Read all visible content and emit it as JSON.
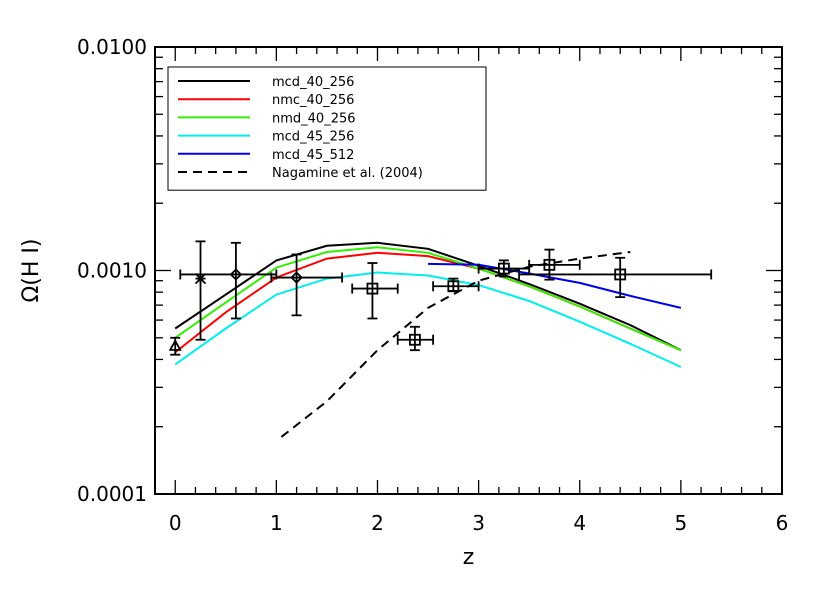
{
  "chart_data": {
    "type": "line",
    "title": "",
    "xlabel": "z",
    "ylabel": "Ω(H I)",
    "xlim": [
      -0.2,
      6
    ],
    "ylim": [
      0.0001,
      0.01
    ],
    "yscale": "log",
    "grid": false,
    "legend_position": "top-left",
    "x_ticks": [
      0,
      1,
      2,
      3,
      4,
      5,
      6
    ],
    "x_tick_labels": [
      "0",
      "1",
      "2",
      "3",
      "4",
      "5",
      "6"
    ],
    "y_ticks": [
      0.0001,
      0.001,
      0.01
    ],
    "y_tick_labels": [
      "0.0001",
      "0.0010",
      "0.0100"
    ],
    "series": [
      {
        "name": "mcd_40_256",
        "color": "#000000",
        "dash": "solid",
        "x": [
          0,
          0.5,
          1,
          1.5,
          2,
          2.5,
          3,
          3.5,
          4,
          4.5,
          5
        ],
        "y": [
          0.00055,
          0.00078,
          0.00111,
          0.00129,
          0.00133,
          0.00125,
          0.00105,
          0.00087,
          0.00071,
          0.00057,
          0.00044
        ]
      },
      {
        "name": "nmc_40_256",
        "color": "#ff0000",
        "dash": "solid",
        "x": [
          0,
          0.5,
          1,
          1.5,
          2,
          2.5,
          3,
          3.5,
          4,
          4.5,
          5
        ],
        "y": [
          0.00043,
          0.00065,
          0.00093,
          0.00113,
          0.0012,
          0.00116,
          0.00102,
          0.00085,
          0.00069,
          0.00055,
          0.00044
        ]
      },
      {
        "name": "nmd_40_256",
        "color": "#33ee00",
        "dash": "solid",
        "x": [
          0,
          0.5,
          1,
          1.5,
          2,
          2.5,
          3,
          3.5,
          4,
          4.5,
          5
        ],
        "y": [
          0.0005,
          0.00072,
          0.00103,
          0.00121,
          0.00127,
          0.0012,
          0.00102,
          0.00085,
          0.00069,
          0.00055,
          0.00044
        ]
      },
      {
        "name": "mcd_45_256",
        "color": "#00eeee",
        "dash": "solid",
        "x": [
          0,
          0.5,
          1,
          1.5,
          2,
          2.5,
          3,
          3.5,
          4,
          4.5,
          5
        ],
        "y": [
          0.00038,
          0.00055,
          0.00078,
          0.00092,
          0.00098,
          0.00095,
          0.00086,
          0.00073,
          0.00059,
          0.00047,
          0.00037
        ]
      },
      {
        "name": "mcd_45_512",
        "color": "#0000ee",
        "dash": "solid",
        "x": [
          2.5,
          3,
          3.5,
          4,
          4.5,
          5
        ],
        "y": [
          0.00107,
          0.00106,
          0.00097,
          0.00088,
          0.00077,
          0.00068
        ]
      },
      {
        "name": "Nagamine et al. (2004)",
        "color": "#000000",
        "dash": "dashed",
        "x": [
          1.05,
          1.5,
          2,
          2.5,
          3,
          3.5,
          4,
          4.5
        ],
        "y": [
          0.00018,
          0.00026,
          0.00044,
          0.00068,
          0.0009,
          0.00104,
          0.00113,
          0.00121
        ]
      }
    ],
    "observations": [
      {
        "marker": "triangle",
        "x": 0,
        "y": 0.00046,
        "xerr": [
          0,
          0
        ],
        "yerr": [
          0.00042,
          0.0005
        ]
      },
      {
        "marker": "asterisk",
        "x": 0.25,
        "y": 0.00092,
        "xerr": [
          0,
          0
        ],
        "yerr": [
          0.00049,
          0.00135
        ]
      },
      {
        "marker": "diamond",
        "x": 0.6,
        "y": 0.00096,
        "xerr": [
          0.05,
          1.0
        ],
        "yerr": [
          0.00061,
          0.00133
        ]
      },
      {
        "marker": "diamond",
        "x": 1.2,
        "y": 0.00093,
        "xerr": [
          0.95,
          1.65
        ],
        "yerr": [
          0.00063,
          0.00118
        ]
      },
      {
        "marker": "square",
        "x": 1.95,
        "y": 0.00083,
        "xerr": [
          1.75,
          2.2
        ],
        "yerr": [
          0.00061,
          0.00108
        ]
      },
      {
        "marker": "square",
        "x": 2.37,
        "y": 0.00049,
        "xerr": [
          2.2,
          2.55
        ],
        "yerr": [
          0.00044,
          0.00056
        ]
      },
      {
        "marker": "square",
        "x": 2.75,
        "y": 0.00085,
        "xerr": [
          2.55,
          3.0
        ],
        "yerr": [
          0.00081,
          0.00092
        ]
      },
      {
        "marker": "square",
        "x": 3.25,
        "y": 0.00102,
        "xerr": [
          3.0,
          3.5
        ],
        "yerr": [
          0.00094,
          0.00111
        ]
      },
      {
        "marker": "square",
        "x": 3.7,
        "y": 0.00106,
        "xerr": [
          3.5,
          4.0
        ],
        "yerr": [
          0.00091,
          0.00124
        ]
      },
      {
        "marker": "square",
        "x": 4.4,
        "y": 0.00096,
        "xerr": [
          3.4,
          5.3
        ],
        "yerr": [
          0.00076,
          0.00114
        ]
      }
    ]
  }
}
